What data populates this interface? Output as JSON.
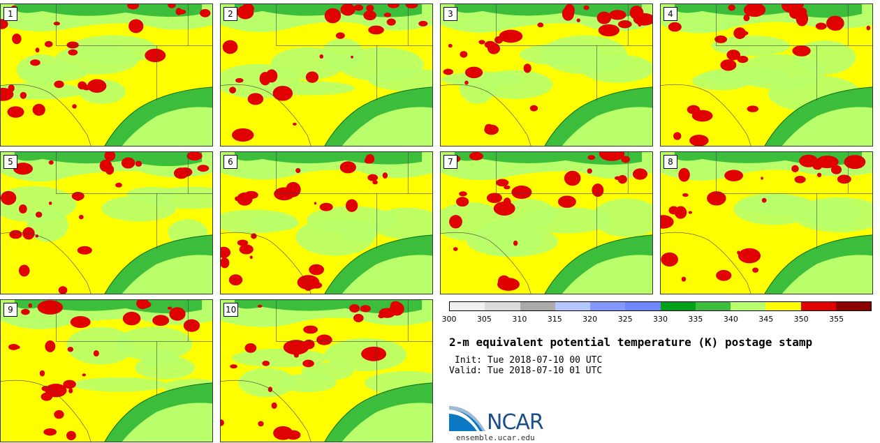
{
  "title": "2-m equivalent potential temperature (K) postage stamp",
  "init": "Init: Tue 2018-07-10 00 UTC",
  "valid": "Valid: Tue 2018-07-10 01 UTC",
  "logo_text": "NCAR",
  "website": "ensemble.ucar.edu",
  "members": [
    "1",
    "2",
    "3",
    "4",
    "5",
    "6",
    "7",
    "8",
    "9",
    "10"
  ],
  "colorbar": {
    "ticks": [
      "300",
      "305",
      "310",
      "315",
      "320",
      "325",
      "330",
      "335",
      "340",
      "345",
      "350",
      "355"
    ],
    "colors": [
      "#f0f0f0",
      "#dcdcdc",
      "#aaaaaa",
      "#b4c8ff",
      "#8299ff",
      "#6f87ff",
      "#00a21b",
      "#3cbe3c",
      "#b8ff6b",
      "#ffff00",
      "#e00000",
      "#8b0000"
    ]
  },
  "map_colors": {
    "cool": "#00a21b",
    "mid": "#3cbe3c",
    "light": "#b8ff6b",
    "warm": "#ffff00",
    "hot": "#e00000"
  }
}
